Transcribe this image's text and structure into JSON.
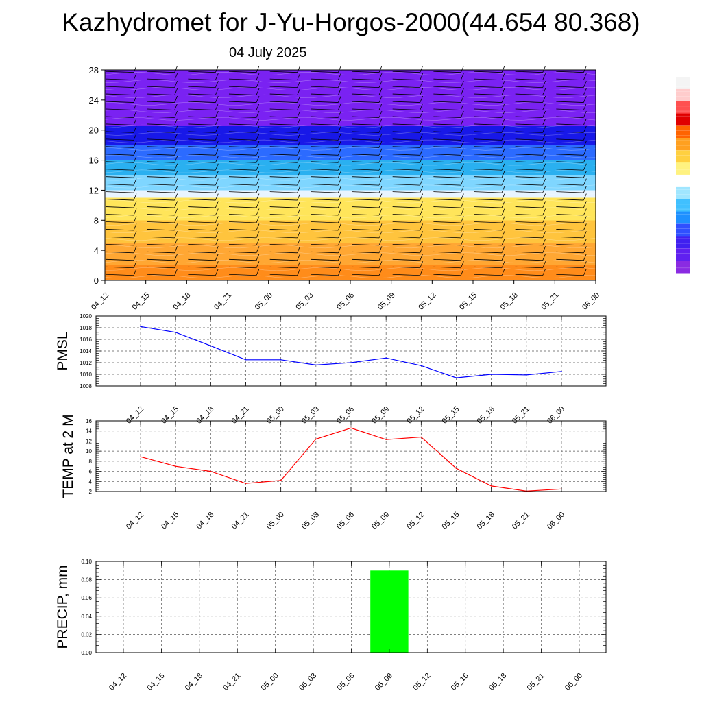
{
  "header": {
    "title": "Kazhydromet for J-Yu-Horgos-2000(44.654 80.368)",
    "date": "04 July 2025"
  },
  "time_labels": [
    "04_12",
    "04_15",
    "04_18",
    "04_21",
    "05_00",
    "05_03",
    "05_06",
    "05_09",
    "05_12",
    "05_15",
    "05_18",
    "05_21",
    "06_00"
  ],
  "chart_data": [
    {
      "type": "heatmap",
      "title": "",
      "ylabel": "",
      "ylim": [
        0,
        28
      ],
      "yticks": [
        0,
        4,
        8,
        12,
        16,
        20,
        24,
        28
      ],
      "x": [
        "04_12",
        "04_15",
        "04_18",
        "04_21",
        "05_00",
        "05_03",
        "05_06",
        "05_09",
        "05_12",
        "05_15",
        "05_18",
        "05_21",
        "06_00"
      ],
      "color_bands": [
        {
          "from": 0,
          "to": 2,
          "color": "#ff8c1a"
        },
        {
          "from": 2,
          "to": 5,
          "color": "#ffa733"
        },
        {
          "from": 5,
          "to": 8,
          "color": "#ffc43d"
        },
        {
          "from": 8,
          "to": 11,
          "color": "#ffe55a"
        },
        {
          "from": 11,
          "to": 12,
          "color": "#e8f4ff"
        },
        {
          "from": 12,
          "to": 14,
          "color": "#7fd6ff"
        },
        {
          "from": 14,
          "to": 16,
          "color": "#2ab0f0"
        },
        {
          "from": 16,
          "to": 18,
          "color": "#2c6bff"
        },
        {
          "from": 18,
          "to": 20.5,
          "color": "#1818e8"
        },
        {
          "from": 20.5,
          "to": 28,
          "color": "#7a22f2"
        }
      ],
      "wind_barbs": true,
      "colorbar": [
        "#f4f4f4",
        "#ffcccc",
        "#ff5050",
        "#e00000",
        "#ff6400",
        "#ffa020",
        "#ffd040",
        "#fff280",
        "#ffffff",
        "#a0e6ff",
        "#40c0ff",
        "#1e90ff",
        "#3050ff",
        "#4020f0",
        "#6020f0",
        "#8a2be2"
      ]
    },
    {
      "type": "line",
      "ylabel": "PMSL",
      "ylim": [
        1008,
        1020
      ],
      "yticks": [
        1008,
        1010,
        1012,
        1014,
        1016,
        1018,
        1020
      ],
      "x": [
        "04_12",
        "04_15",
        "04_18",
        "04_21",
        "05_00",
        "05_03",
        "05_06",
        "05_09",
        "05_12",
        "05_15",
        "05_18",
        "05_21",
        "06_00"
      ],
      "values": [
        1018.2,
        1017.2,
        1014.9,
        1012.5,
        1012.5,
        1011.6,
        1012.0,
        1012.8,
        1011.5,
        1009.4,
        1010.0,
        1009.9,
        1010.5
      ],
      "color": "#0000ff",
      "grid": true
    },
    {
      "type": "line",
      "ylabel": "TEMP at 2 M",
      "ylim": [
        2,
        16
      ],
      "yticks": [
        2,
        4,
        6,
        8,
        10,
        12,
        14,
        16
      ],
      "x": [
        "04_12",
        "04_15",
        "04_18",
        "04_21",
        "05_00",
        "05_03",
        "05_06",
        "05_09",
        "05_12",
        "05_15",
        "05_18",
        "05_21",
        "06_00"
      ],
      "values": [
        8.9,
        7.0,
        6.0,
        3.6,
        4.2,
        12.4,
        14.6,
        12.3,
        12.8,
        6.6,
        3.1,
        2.1,
        2.5
      ],
      "color": "#ff0000",
      "grid": true
    },
    {
      "type": "bar",
      "ylabel": "PRECIP, mm",
      "ylim": [
        0,
        0.1
      ],
      "yticks": [
        "0.00",
        "0.02",
        "0.04",
        "0.06",
        "0.08",
        "0.10"
      ],
      "categories": [
        "04_12",
        "04_15",
        "04_18",
        "04_21",
        "05_00",
        "05_03",
        "05_06",
        "05_09",
        "05_12",
        "05_15",
        "05_18",
        "05_21",
        "06_00"
      ],
      "values": [
        0,
        0,
        0,
        0,
        0,
        0,
        0,
        0.09,
        0,
        0,
        0,
        0,
        0
      ],
      "color": "#00ff00",
      "grid": true
    }
  ]
}
